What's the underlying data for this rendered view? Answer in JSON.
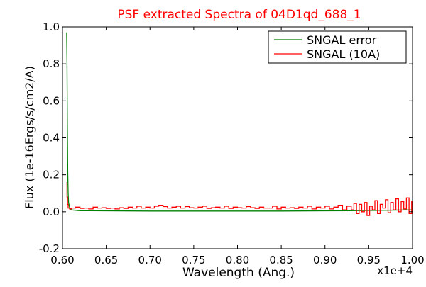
{
  "chart_data": {
    "type": "line",
    "title": "PSF extracted Spectra of 04D1qd_688_1",
    "xlabel": "Wavelength (Ang.)",
    "ylabel": "Flux (1e-16Ergs/s/cm2/A)",
    "x_multiplier_label": "x1e+4",
    "xlim": [
      0.6,
      1.0
    ],
    "ylim": [
      -0.2,
      1.0
    ],
    "x_ticks": [
      0.6,
      0.65,
      0.7,
      0.75,
      0.8,
      0.85,
      0.9,
      0.95,
      1.0
    ],
    "x_tick_labels": [
      "0.60",
      "0.65",
      "0.70",
      "0.75",
      "0.80",
      "0.85",
      "0.90",
      "0.95",
      "1.00"
    ],
    "y_ticks": [
      -0.2,
      0.0,
      0.2,
      0.4,
      0.6,
      0.8,
      1.0
    ],
    "y_tick_labels": [
      "-0.2",
      "0.0",
      "0.2",
      "0.4",
      "0.6",
      "0.8",
      "1.0"
    ],
    "grid": false,
    "legend_position": "top-right",
    "series": [
      {
        "name": "SNGAL error",
        "color": "#008000",
        "x": [
          0.6048,
          0.6052,
          0.6056,
          0.606,
          0.6065,
          0.607,
          0.608,
          0.609,
          0.61,
          0.62,
          0.65,
          0.7,
          0.75,
          0.8,
          0.85,
          0.9,
          0.93,
          0.95,
          0.97,
          1.0
        ],
        "y": [
          0.97,
          0.8,
          0.45,
          0.22,
          0.1,
          0.05,
          0.025,
          0.015,
          0.01,
          0.006,
          0.005,
          0.004,
          0.004,
          0.004,
          0.004,
          0.005,
          0.006,
          0.007,
          0.008,
          0.01
        ]
      },
      {
        "name": "SNGAL (10A)",
        "color": "#ff0000",
        "x": [
          0.6048,
          0.6052,
          0.6058,
          0.6065,
          0.608,
          0.61,
          0.615,
          0.62,
          0.625,
          0.63,
          0.635,
          0.64,
          0.645,
          0.65,
          0.655,
          0.66,
          0.665,
          0.67,
          0.675,
          0.68,
          0.685,
          0.69,
          0.695,
          0.7,
          0.705,
          0.71,
          0.715,
          0.72,
          0.725,
          0.73,
          0.735,
          0.74,
          0.745,
          0.75,
          0.755,
          0.76,
          0.765,
          0.77,
          0.775,
          0.78,
          0.785,
          0.79,
          0.795,
          0.8,
          0.805,
          0.81,
          0.815,
          0.82,
          0.825,
          0.83,
          0.835,
          0.84,
          0.845,
          0.85,
          0.855,
          0.86,
          0.865,
          0.87,
          0.875,
          0.88,
          0.885,
          0.89,
          0.895,
          0.9,
          0.905,
          0.91,
          0.915,
          0.92,
          0.925,
          0.93,
          0.933,
          0.936,
          0.939,
          0.942,
          0.945,
          0.948,
          0.951,
          0.954,
          0.957,
          0.96,
          0.963,
          0.966,
          0.969,
          0.972,
          0.975,
          0.978,
          0.981,
          0.984,
          0.987,
          0.99,
          0.993,
          0.996,
          0.999
        ],
        "y": [
          0.16,
          0.08,
          0.04,
          0.02,
          0.015,
          0.02,
          0.025,
          0.018,
          0.02,
          0.015,
          0.025,
          0.02,
          0.022,
          0.018,
          0.02,
          0.015,
          0.022,
          0.018,
          0.025,
          0.02,
          0.03,
          0.02,
          0.025,
          0.02,
          0.03,
          0.035,
          0.028,
          0.02,
          0.025,
          0.03,
          0.02,
          0.028,
          0.022,
          0.02,
          0.025,
          0.03,
          0.018,
          0.022,
          0.025,
          0.02,
          0.03,
          0.018,
          0.025,
          0.022,
          0.02,
          0.028,
          0.022,
          0.018,
          0.025,
          0.02,
          0.02,
          0.03,
          0.015,
          0.025,
          0.02,
          0.022,
          0.018,
          0.025,
          0.02,
          0.03,
          0.015,
          0.025,
          0.02,
          0.03,
          0.015,
          0.025,
          0.035,
          0.01,
          0.03,
          0.01,
          0.045,
          -0.01,
          0.04,
          0.0,
          0.05,
          -0.02,
          0.03,
          0.01,
          0.06,
          -0.01,
          0.04,
          0.02,
          0.065,
          -0.005,
          0.05,
          0.01,
          0.07,
          0.0,
          0.055,
          0.015,
          0.075,
          -0.01,
          0.06
        ]
      }
    ]
  }
}
